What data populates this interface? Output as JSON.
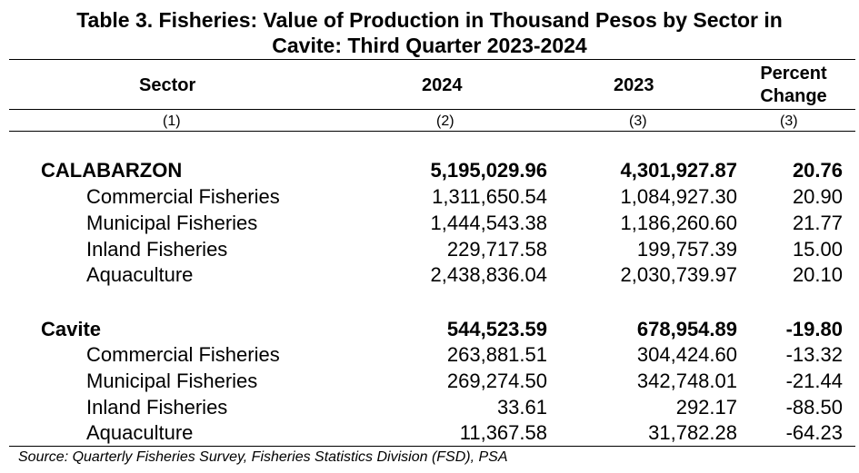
{
  "title_line1": "Table 3. Fisheries: Value of Production in Thousand Pesos by Sector in",
  "title_line2": "Cavite: Third Quarter 2023-2024",
  "headers": {
    "sector": "Sector",
    "y2024": "2024",
    "y2023": "2023",
    "pct_line1": "Percent",
    "pct_line2": "Change"
  },
  "col_numbers": [
    "(1)",
    "(2)",
    "(3)",
    "(3)"
  ],
  "groups": [
    {
      "name": "CALABARZON",
      "v2024": "5,195,029.96",
      "v2023": "4,301,927.87",
      "pct": "20.76",
      "rows": [
        {
          "sector": "Commercial Fisheries",
          "v2024": "1,311,650.54",
          "v2023": "1,084,927.30",
          "pct": "20.90"
        },
        {
          "sector": "Municipal Fisheries",
          "v2024": "1,444,543.38",
          "v2023": "1,186,260.60",
          "pct": "21.77"
        },
        {
          "sector": "Inland Fisheries",
          "v2024": "229,717.58",
          "v2023": "199,757.39",
          "pct": "15.00"
        },
        {
          "sector": "Aquaculture",
          "v2024": "2,438,836.04",
          "v2023": "2,030,739.97",
          "pct": "20.10"
        }
      ]
    },
    {
      "name": "Cavite",
      "v2024": "544,523.59",
      "v2023": "678,954.89",
      "pct": "-19.80",
      "rows": [
        {
          "sector": "Commercial Fisheries",
          "v2024": "263,881.51",
          "v2023": "304,424.60",
          "pct": "-13.32"
        },
        {
          "sector": "Municipal Fisheries",
          "v2024": "269,274.50",
          "v2023": "342,748.01",
          "pct": "-21.44"
        },
        {
          "sector": "Inland Fisheries",
          "v2024": "33.61",
          "v2023": "292.17",
          "pct": "-88.50"
        },
        {
          "sector": "Aquaculture",
          "v2024": "11,367.58",
          "v2023": "31,782.28",
          "pct": "-64.23"
        }
      ]
    }
  ],
  "source": "Source: Quarterly Fisheries Survey, Fisheries Statistics Division (FSD), PSA"
}
